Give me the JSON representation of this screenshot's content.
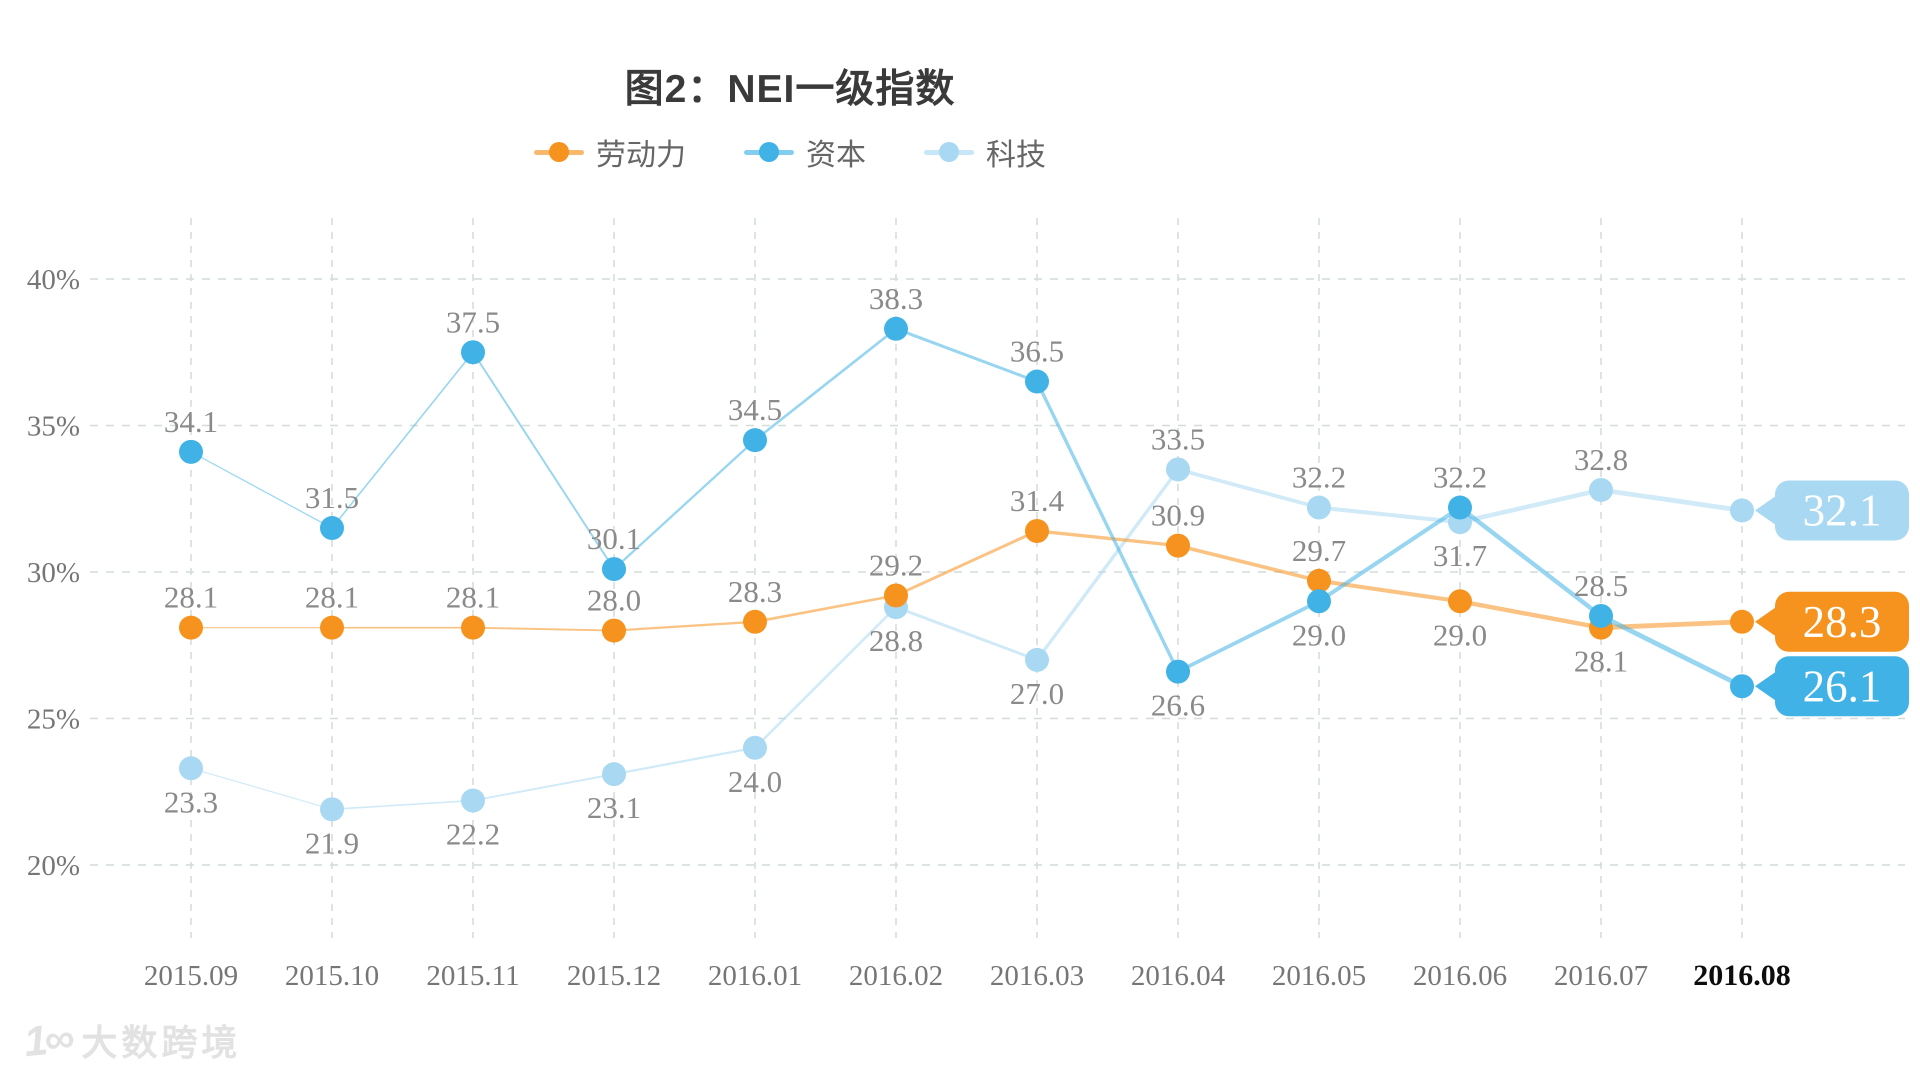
{
  "title": "图2：NEI一级指数",
  "legend": {
    "items": [
      {
        "label": "劳动力",
        "color": "#F6921E"
      },
      {
        "label": "资本",
        "color": "#41B2E6"
      },
      {
        "label": "科技",
        "color": "#A9D8F2"
      }
    ]
  },
  "watermark": {
    "logo_glyph": "1∞",
    "label": "大数跨境"
  },
  "style": {
    "grid_color": "#d4dcd8",
    "axis_label_color": "#767676",
    "last_x_label_color": "#0d0d0d",
    "value_label_color": "#8a8a8a",
    "title_color": "#3a3a3a",
    "legend_text_color": "#666666",
    "badge_text_color": "#ffffff",
    "accent_orange": "#F6921E",
    "accent_blue": "#41B2E6",
    "accent_light_blue": "#A9D8F2"
  },
  "chart_data": {
    "type": "line",
    "title": "图2：NEI一级指数",
    "x": [
      "2015.09",
      "2015.10",
      "2015.11",
      "2015.12",
      "2016.01",
      "2016.02",
      "2016.03",
      "2016.04",
      "2016.05",
      "2016.06",
      "2016.07",
      "2016.08"
    ],
    "ylim": [
      20,
      40
    ],
    "yticks": [
      {
        "label": "40%",
        "value": 40
      },
      {
        "label": "35%",
        "value": 35
      },
      {
        "label": "30%",
        "value": 30
      },
      {
        "label": "25%",
        "value": 25
      },
      {
        "label": "20%",
        "value": 20
      }
    ],
    "grid": true,
    "legend_position": "top",
    "highlight_last_x": true,
    "series": [
      {
        "name": "劳动力",
        "color": "#F6921E",
        "values": [
          28.1,
          28.1,
          28.1,
          28.0,
          28.3,
          29.2,
          31.4,
          30.9,
          29.7,
          29.0,
          28.1,
          28.3
        ],
        "label_side": [
          "above",
          "above",
          "above",
          "above",
          "above",
          "above",
          "above",
          "above",
          "above",
          "below",
          "below",
          "badge"
        ],
        "end_badge": "28.3"
      },
      {
        "name": "资本",
        "color": "#41B2E6",
        "values": [
          34.1,
          31.5,
          37.5,
          30.1,
          34.5,
          38.3,
          36.5,
          26.6,
          29.0,
          32.2,
          28.5,
          26.1
        ],
        "label_side": [
          "above",
          "above",
          "above",
          "above",
          "above",
          "above",
          "above",
          "below",
          "below",
          "above",
          "above",
          "badge"
        ],
        "end_badge": "26.1"
      },
      {
        "name": "科技",
        "color": "#A9D8F2",
        "values": [
          23.3,
          21.9,
          22.2,
          23.1,
          24.0,
          28.8,
          27.0,
          33.5,
          32.2,
          31.7,
          32.8,
          32.1
        ],
        "label_side": [
          "below",
          "below",
          "below",
          "below",
          "below",
          "below",
          "below",
          "above",
          "above",
          "below",
          "above",
          "badge"
        ],
        "end_badge": "32.1"
      }
    ]
  }
}
